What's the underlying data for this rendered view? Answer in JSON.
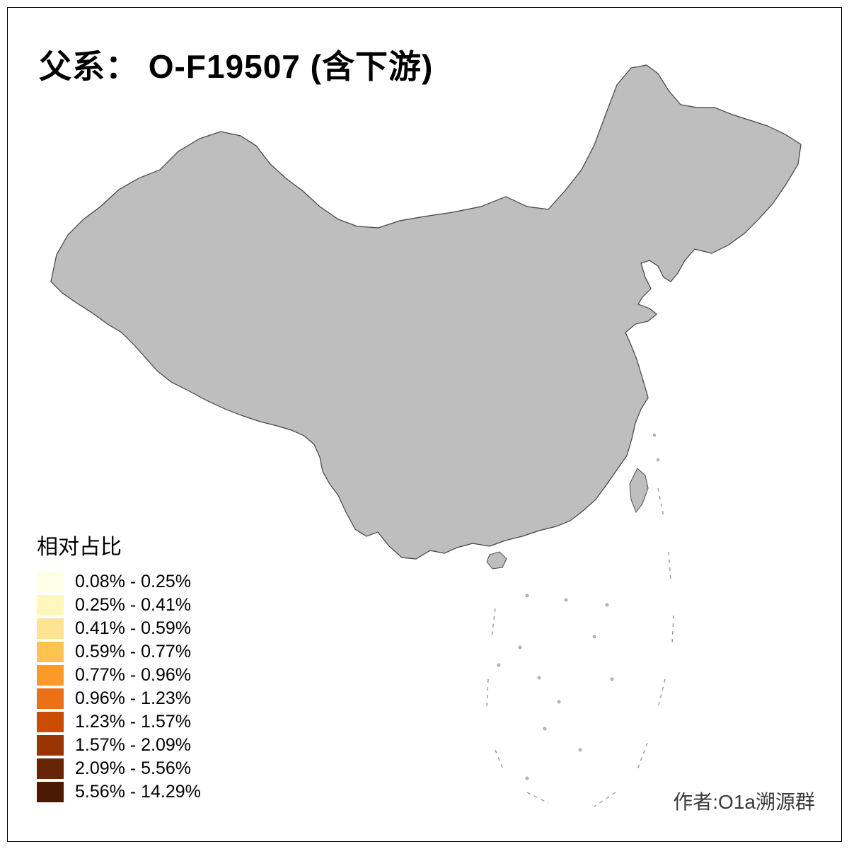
{
  "title": "父系： O-F19507 (含下游)",
  "legend": {
    "title": "相对占比",
    "items": [
      {
        "label": "0.08% - 0.25%",
        "color": "#FFFFE5"
      },
      {
        "label": "0.25% - 0.41%",
        "color": "#FFF7BC"
      },
      {
        "label": "0.41% - 0.59%",
        "color": "#FEE391"
      },
      {
        "label": "0.59% - 0.77%",
        "color": "#FEC44F"
      },
      {
        "label": "0.77% - 0.96%",
        "color": "#FB9A29"
      },
      {
        "label": "0.96% - 1.23%",
        "color": "#EC7014"
      },
      {
        "label": "1.23% - 1.57%",
        "color": "#CC4C02"
      },
      {
        "label": "1.57% - 2.09%",
        "color": "#993404"
      },
      {
        "label": "2.09% - 5.56%",
        "color": "#662506"
      },
      {
        "label": "5.56% - 14.29%",
        "color": "#4A1A02"
      }
    ],
    "no_data_color": "#BEBEBE"
  },
  "credit": "作者:O1a溯源群"
}
